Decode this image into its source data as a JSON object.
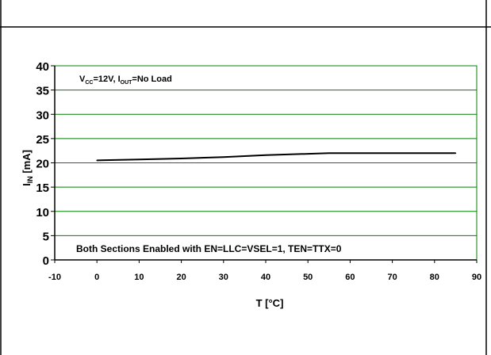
{
  "chart_data": {
    "type": "line",
    "xlabel": "T [°C]",
    "ylabel": {
      "main": "I",
      "sub": "IN",
      "unit": " [mA]"
    },
    "xlim": [
      -10,
      90
    ],
    "ylim": [
      0,
      40
    ],
    "xticks": [
      -10,
      0,
      10,
      20,
      30,
      40,
      50,
      60,
      70,
      80,
      90
    ],
    "yticks": [
      0,
      5,
      10,
      15,
      20,
      25,
      30,
      35,
      40
    ],
    "grid": "horizontal",
    "legend": "none",
    "series": [
      {
        "x": [
          0,
          10,
          20,
          30,
          40,
          55,
          70,
          85
        ],
        "y": [
          20.5,
          20.7,
          20.9,
          21.2,
          21.6,
          22.0,
          22.0,
          22.0
        ]
      }
    ],
    "annotations": {
      "conditions": {
        "parts": [
          {
            "t": "V",
            "sub": false
          },
          {
            "t": "CC",
            "sub": true
          },
          {
            "t": "=12V, I",
            "sub": false
          },
          {
            "t": "OUT",
            "sub": true
          },
          {
            "t": "=No Load",
            "sub": false
          }
        ]
      },
      "mode": "Both Sections Enabled with EN=LLC=VSEL=1, TEN=TTX=0"
    },
    "colors": {
      "plot_bg": "#ffffff",
      "grid": "#008000",
      "axis": "#000000",
      "line": "#000000"
    }
  }
}
